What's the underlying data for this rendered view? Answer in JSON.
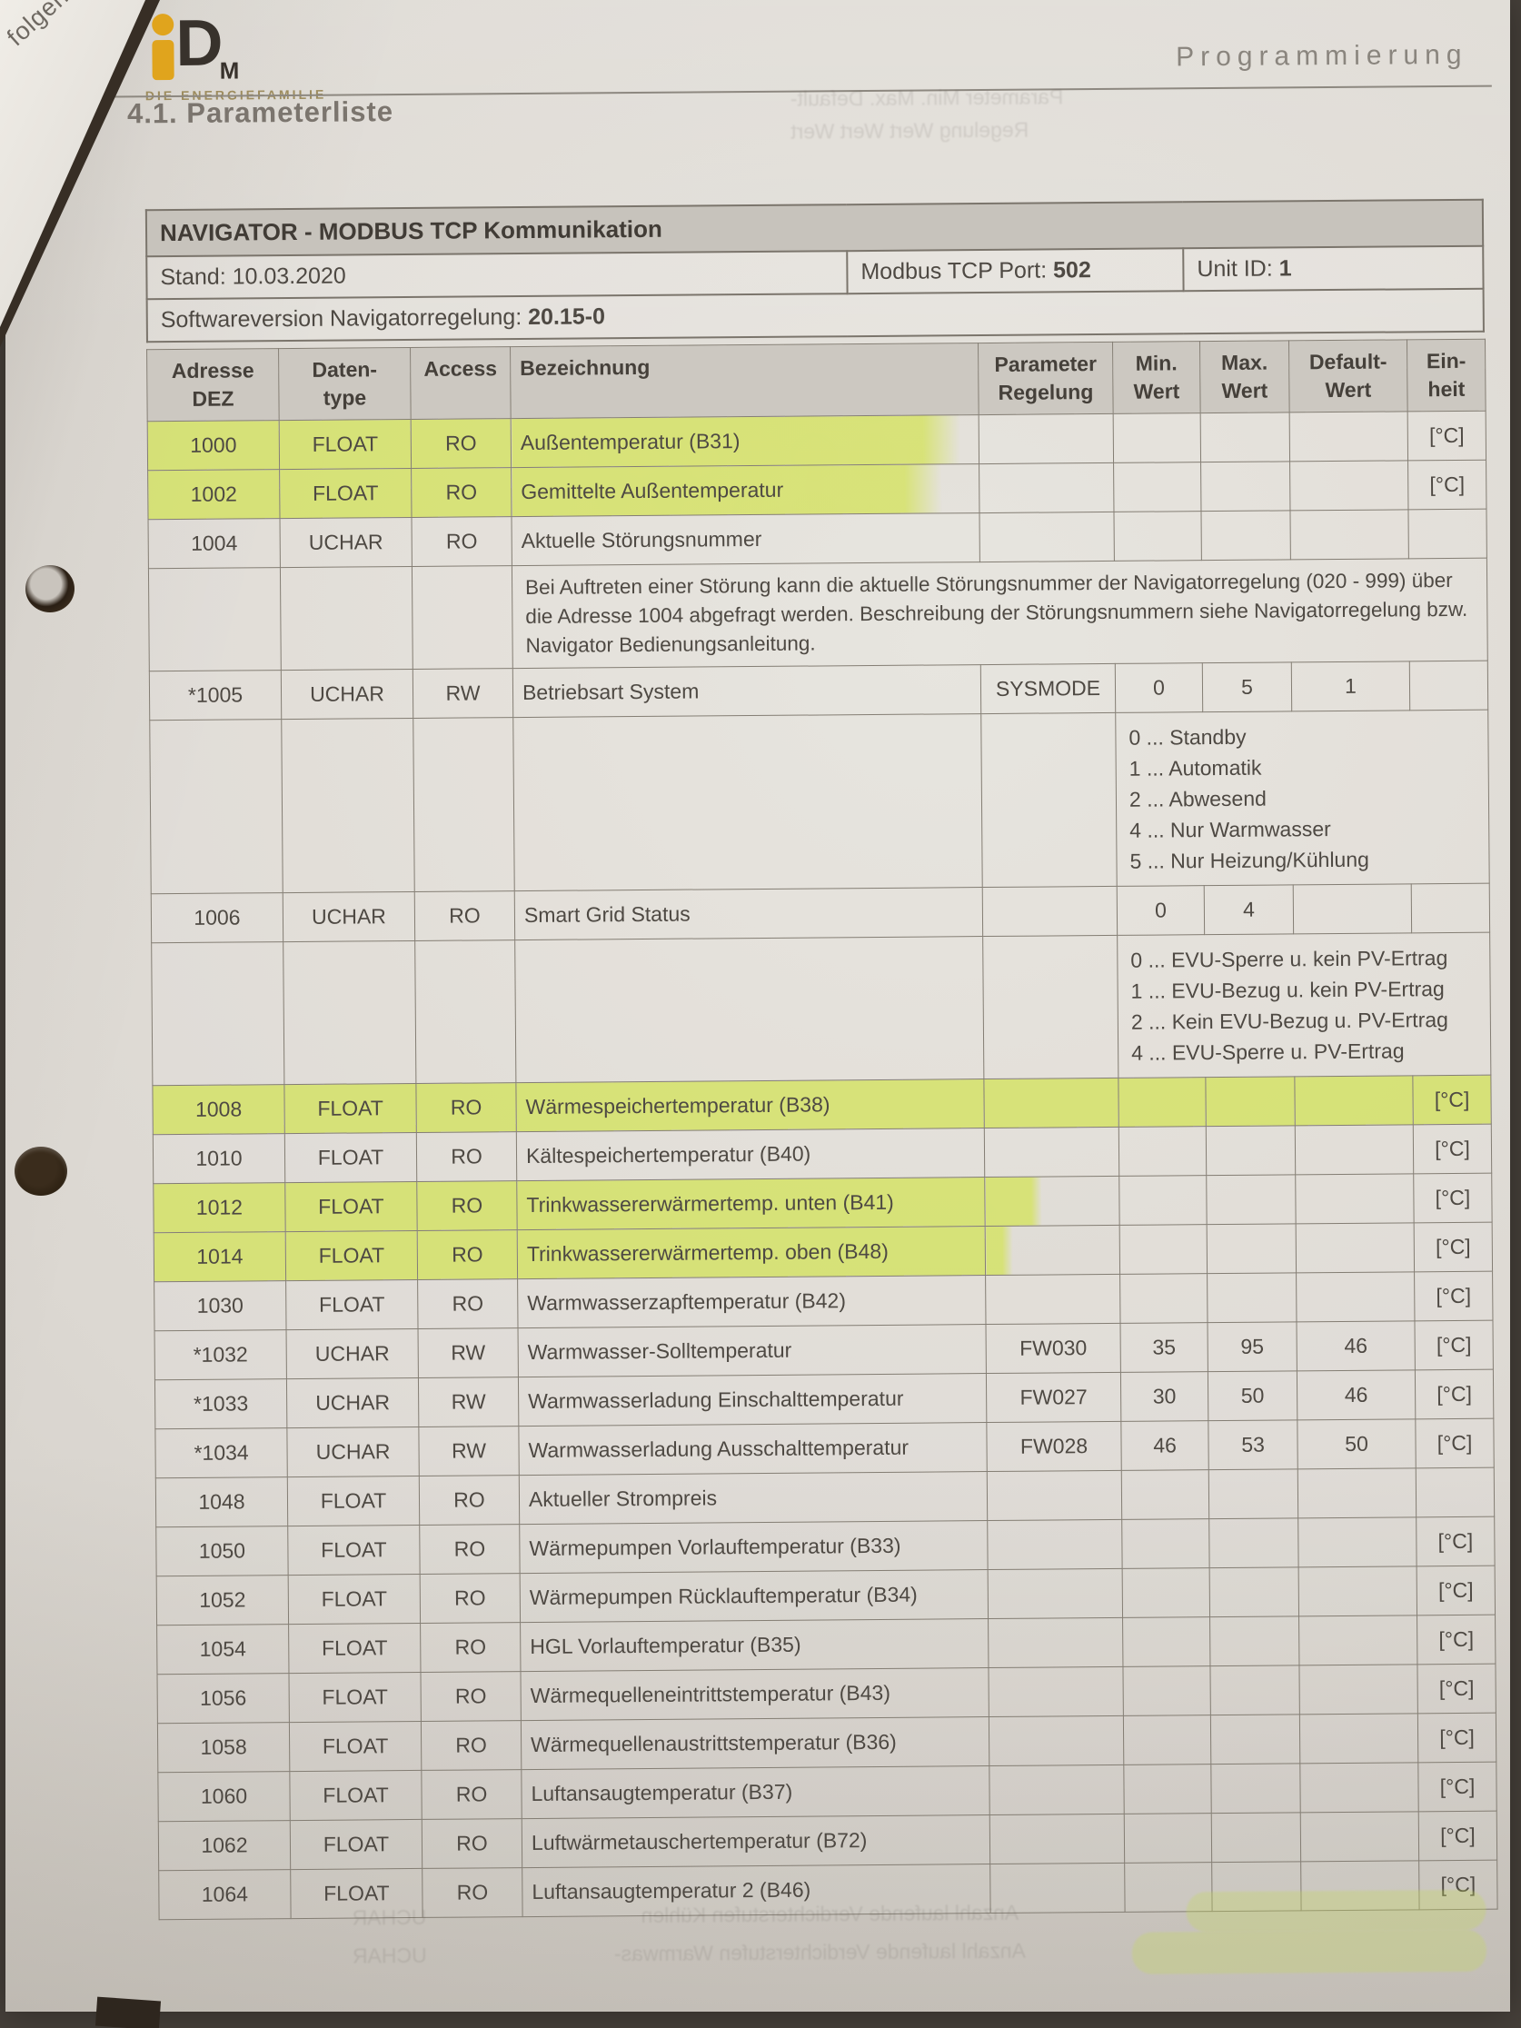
{
  "page": {
    "section_label": "Programmierung",
    "title": "4.1. Parameterliste",
    "corner_note": "folgen-",
    "logo": {
      "d_glyph": "D",
      "m_glyph": "M",
      "tagline": "DIE ENERGIEFAMILIE"
    },
    "highlight_color": "#d4e35d"
  },
  "info_table": {
    "title": "NAVIGATOR - MODBUS TCP Kommunikation",
    "stand_label": "Stand:",
    "stand_value": "10.03.2020",
    "port_label": "Modbus TCP Port:",
    "port_value": "502",
    "unit_label": "Unit ID:",
    "unit_value": "1",
    "software_label": "Softwareversion Navigatorregelung:",
    "software_value": "20.15-0"
  },
  "columns": [
    {
      "l1": "Adresse",
      "l2": "DEZ"
    },
    {
      "l1": "Daten-",
      "l2": "type"
    },
    {
      "l1": "Access",
      "l2": ""
    },
    {
      "l1": "Bezeichnung",
      "l2": ""
    },
    {
      "l1": "Parameter",
      "l2": "Regelung"
    },
    {
      "l1": "Min.",
      "l2": "Wert"
    },
    {
      "l1": "Max.",
      "l2": "Wert"
    },
    {
      "l1": "Default-",
      "l2": "Wert"
    },
    {
      "l1": "Ein-",
      "l2": "heit"
    }
  ],
  "rows": [
    {
      "t": "p",
      "adr": "1000",
      "dat": "FLOAT",
      "acc": "RO",
      "bez": "Außentemperatur (B31)",
      "par": "",
      "min": "",
      "max": "",
      "def": "",
      "ein": "[°C]",
      "hl": 4,
      "fade": 96
    },
    {
      "t": "p",
      "adr": "1002",
      "dat": "FLOAT",
      "acc": "RO",
      "bez": "Gemittelte Außentemperatur",
      "par": "",
      "min": "",
      "max": "",
      "def": "",
      "ein": "[°C]",
      "hl": 4,
      "fade": 92
    },
    {
      "t": "p",
      "adr": "1004",
      "dat": "UCHAR",
      "acc": "RO",
      "bez": "Aktuelle Störungsnummer",
      "par": "",
      "min": "",
      "max": "",
      "def": "",
      "ein": ""
    },
    {
      "t": "n",
      "text": "Bei Auftreten einer Störung kann die aktuelle Störungsnummer der Navigatorregelung (020 - 999) über die Adresse 1004 abgefragt werden. Beschreibung der Störungsnummern siehe Navigatorregelung bzw. Navigator Bedienungsanleitung."
    },
    {
      "t": "p",
      "adr": "*1005",
      "dat": "UCHAR",
      "acc": "RW",
      "bez": "Betriebsart System",
      "par": "SYSMODE",
      "min": "0",
      "max": "5",
      "def": "1",
      "ein": ""
    },
    {
      "t": "e",
      "lines": [
        "0 ... Standby",
        "1 ... Automatik",
        "2 ... Abwesend",
        "4 ... Nur Warmwasser",
        "5 ... Nur Heizung/Kühlung"
      ]
    },
    {
      "t": "p",
      "adr": "1006",
      "dat": "UCHAR",
      "acc": "RO",
      "bez": "Smart Grid Status",
      "par": "",
      "min": "0",
      "max": "4",
      "def": "",
      "ein": ""
    },
    {
      "t": "e",
      "lines": [
        "0 ... EVU-Sperre u. kein PV-Ertrag",
        "1 ... EVU-Bezug u. kein PV-Ertrag",
        "2 ... Kein EVU-Bezug u. PV-Ertrag",
        "4 ... EVU-Sperre u. PV-Ertrag"
      ]
    },
    {
      "t": "p",
      "adr": "1008",
      "dat": "FLOAT",
      "acc": "RO",
      "bez": "Wärmespeichertemperatur (B38)",
      "par": "",
      "min": "",
      "max": "",
      "def": "",
      "ein": "[°C]",
      "hl": 9,
      "fade": 100
    },
    {
      "t": "p",
      "adr": "1010",
      "dat": "FLOAT",
      "acc": "RO",
      "bez": "Kältespeichertemperatur (B40)",
      "par": "",
      "min": "",
      "max": "",
      "def": "",
      "ein": "[°C]"
    },
    {
      "t": "p",
      "adr": "1012",
      "dat": "FLOAT",
      "acc": "RO",
      "bez": "Trinkwassererwärmertemp. unten (B41)",
      "par": "",
      "min": "",
      "max": "",
      "def": "",
      "ein": "[°C]",
      "hl": 5,
      "fade": 42
    },
    {
      "t": "p",
      "adr": "1014",
      "dat": "FLOAT",
      "acc": "RO",
      "bez": "Trinkwassererwärmertemp. oben (B48)",
      "par": "",
      "min": "",
      "max": "",
      "def": "",
      "ein": "[°C]",
      "hl": 5,
      "fade": 20
    },
    {
      "t": "p",
      "adr": "1030",
      "dat": "FLOAT",
      "acc": "RO",
      "bez": "Warmwasserzapftemperatur (B42)",
      "par": "",
      "min": "",
      "max": "",
      "def": "",
      "ein": "[°C]"
    },
    {
      "t": "p",
      "adr": "*1032",
      "dat": "UCHAR",
      "acc": "RW",
      "bez": "Warmwasser-Solltemperatur",
      "par": "FW030",
      "min": "35",
      "max": "95",
      "def": "46",
      "ein": "[°C]"
    },
    {
      "t": "p",
      "adr": "*1033",
      "dat": "UCHAR",
      "acc": "RW",
      "bez": "Warmwasserladung Einschalttemperatur",
      "par": "FW027",
      "min": "30",
      "max": "50",
      "def": "46",
      "ein": "[°C]"
    },
    {
      "t": "p",
      "adr": "*1034",
      "dat": "UCHAR",
      "acc": "RW",
      "bez": "Warmwasserladung Ausschalttemperatur",
      "par": "FW028",
      "min": "46",
      "max": "53",
      "def": "50",
      "ein": "[°C]"
    },
    {
      "t": "p",
      "adr": "1048",
      "dat": "FLOAT",
      "acc": "RO",
      "bez": "Aktueller Strompreis",
      "par": "",
      "min": "",
      "max": "",
      "def": "",
      "ein": ""
    },
    {
      "t": "p",
      "adr": "1050",
      "dat": "FLOAT",
      "acc": "RO",
      "bez": "Wärmepumpen Vorlauftemperatur (B33)",
      "par": "",
      "min": "",
      "max": "",
      "def": "",
      "ein": "[°C]"
    },
    {
      "t": "p",
      "adr": "1052",
      "dat": "FLOAT",
      "acc": "RO",
      "bez": "Wärmepumpen Rücklauftemperatur (B34)",
      "par": "",
      "min": "",
      "max": "",
      "def": "",
      "ein": "[°C]"
    },
    {
      "t": "p",
      "adr": "1054",
      "dat": "FLOAT",
      "acc": "RO",
      "bez": "HGL Vorlauftemperatur (B35)",
      "par": "",
      "min": "",
      "max": "",
      "def": "",
      "ein": "[°C]"
    },
    {
      "t": "p",
      "adr": "1056",
      "dat": "FLOAT",
      "acc": "RO",
      "bez": "Wärmequelleneintrittstemperatur (B43)",
      "par": "",
      "min": "",
      "max": "",
      "def": "",
      "ein": "[°C]"
    },
    {
      "t": "p",
      "adr": "1058",
      "dat": "FLOAT",
      "acc": "RO",
      "bez": "Wärmequellenaustrittstemperatur (B36)",
      "par": "",
      "min": "",
      "max": "",
      "def": "",
      "ein": "[°C]"
    },
    {
      "t": "p",
      "adr": "1060",
      "dat": "FLOAT",
      "acc": "RO",
      "bez": "Luftansaugtemperatur (B37)",
      "par": "",
      "min": "",
      "max": "",
      "def": "",
      "ein": "[°C]"
    },
    {
      "t": "p",
      "adr": "1062",
      "dat": "FLOAT",
      "acc": "RO",
      "bez": "Luftwärmetauschertemperatur (B72)",
      "par": "",
      "min": "",
      "max": "",
      "def": "",
      "ein": "[°C]"
    },
    {
      "t": "p",
      "adr": "1064",
      "dat": "FLOAT",
      "acc": "RO",
      "bez": "Luftansaugtemperatur 2 (B46)",
      "par": "",
      "min": "",
      "max": "",
      "def": "",
      "ein": "[°C]"
    }
  ],
  "ghosts": [
    "Parameter    Min.    Max.    Default-",
    "Regelung    Wert    Wert    Wert",
    "Anzahl laufende Verdichterstufen Kühlen",
    "Anzahl laufende Verdichterstufen Warmwas-",
    "UCHAR",
    "UCHAR"
  ]
}
